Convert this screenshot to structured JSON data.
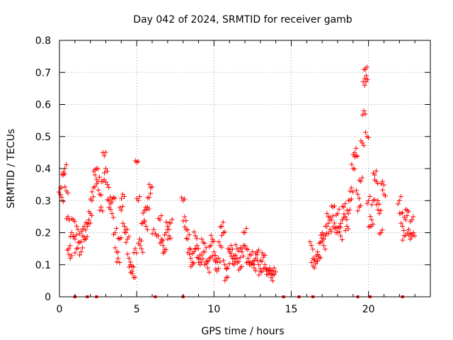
{
  "chart_data": {
    "type": "scatter",
    "title": "Day 042 of 2024, SRMTID for receiver gamb",
    "xlabel": "GPS time / hours",
    "ylabel": "SRMTID / TECUs",
    "xlim": [
      0,
      24
    ],
    "ylim": [
      0,
      0.8
    ],
    "x_ticks": [
      0,
      5,
      10,
      15,
      20
    ],
    "x_tick_labels": [
      "0",
      "5",
      "10",
      "15",
      "20"
    ],
    "y_ticks": [
      0,
      0.1,
      0.2,
      0.3,
      0.4,
      0.5,
      0.6,
      0.7,
      0.8
    ],
    "y_tick_labels": [
      "0",
      "0.1",
      "0.2",
      "0.3",
      "0.4",
      "0.5",
      "0.6",
      "0.7",
      "0.8"
    ],
    "grid": true,
    "marker": "plus",
    "color": "#ff0000",
    "gap_markers_x": [
      1.0,
      1.8,
      2.4,
      6.2,
      8.0,
      14.5,
      15.5,
      16.4,
      19.3,
      20.1,
      22.2
    ],
    "series": [
      {
        "name": "SRMTID",
        "points": [
          [
            0.05,
            0.34
          ],
          [
            0.15,
            0.31
          ],
          [
            0.25,
            0.38
          ],
          [
            0.35,
            0.4
          ],
          [
            0.45,
            0.33
          ],
          [
            0.55,
            0.25
          ],
          [
            0.6,
            0.15
          ],
          [
            0.7,
            0.12
          ],
          [
            0.8,
            0.2
          ],
          [
            0.9,
            0.24
          ],
          [
            1.0,
            0.18
          ],
          [
            1.1,
            0.15
          ],
          [
            1.2,
            0.21
          ],
          [
            1.3,
            0.17
          ],
          [
            1.4,
            0.14
          ],
          [
            1.5,
            0.19
          ],
          [
            1.6,
            0.22
          ],
          [
            1.7,
            0.18
          ],
          [
            1.8,
            0.22
          ],
          [
            1.9,
            0.24
          ],
          [
            2.0,
            0.26
          ],
          [
            2.1,
            0.3
          ],
          [
            2.2,
            0.34
          ],
          [
            2.3,
            0.38
          ],
          [
            2.4,
            0.4
          ],
          [
            2.5,
            0.36
          ],
          [
            2.6,
            0.32
          ],
          [
            2.7,
            0.28
          ],
          [
            2.8,
            0.36
          ],
          [
            2.9,
            0.44
          ],
          [
            3.0,
            0.4
          ],
          [
            3.1,
            0.35
          ],
          [
            3.2,
            0.3
          ],
          [
            3.3,
            0.29
          ],
          [
            3.4,
            0.26
          ],
          [
            3.5,
            0.31
          ],
          [
            3.6,
            0.2
          ],
          [
            3.7,
            0.14
          ],
          [
            3.8,
            0.12
          ],
          [
            3.9,
            0.18
          ],
          [
            4.0,
            0.27
          ],
          [
            4.1,
            0.32
          ],
          [
            4.2,
            0.22
          ],
          [
            4.3,
            0.2
          ],
          [
            4.4,
            0.18
          ],
          [
            4.5,
            0.12
          ],
          [
            4.6,
            0.1
          ],
          [
            4.7,
            0.08
          ],
          [
            4.8,
            0.06
          ],
          [
            4.9,
            0.15
          ],
          [
            5.0,
            0.42
          ],
          [
            5.1,
            0.3
          ],
          [
            5.2,
            0.18
          ],
          [
            5.3,
            0.15
          ],
          [
            5.4,
            0.23
          ],
          [
            5.5,
            0.27
          ],
          [
            5.6,
            0.22
          ],
          [
            5.7,
            0.28
          ],
          [
            5.8,
            0.31
          ],
          [
            5.9,
            0.34
          ],
          [
            6.1,
            0.21
          ],
          [
            6.3,
            0.19
          ],
          [
            6.5,
            0.24
          ],
          [
            6.6,
            0.18
          ],
          [
            6.7,
            0.16
          ],
          [
            6.8,
            0.14
          ],
          [
            6.9,
            0.2
          ],
          [
            7.0,
            0.22
          ],
          [
            7.1,
            0.19
          ],
          [
            7.2,
            0.23
          ],
          [
            8.0,
            0.3
          ],
          [
            8.1,
            0.25
          ],
          [
            8.2,
            0.21
          ],
          [
            8.3,
            0.18
          ],
          [
            8.4,
            0.15
          ],
          [
            8.5,
            0.12
          ],
          [
            8.6,
            0.1
          ],
          [
            8.7,
            0.14
          ],
          [
            8.8,
            0.19
          ],
          [
            8.9,
            0.16
          ],
          [
            9.0,
            0.12
          ],
          [
            9.1,
            0.1
          ],
          [
            9.2,
            0.13
          ],
          [
            9.3,
            0.17
          ],
          [
            9.4,
            0.14
          ],
          [
            9.5,
            0.11
          ],
          [
            9.6,
            0.09
          ],
          [
            9.7,
            0.12
          ],
          [
            9.8,
            0.16
          ],
          [
            9.9,
            0.18
          ],
          [
            10.0,
            0.14
          ],
          [
            10.1,
            0.11
          ],
          [
            10.2,
            0.08
          ],
          [
            10.3,
            0.12
          ],
          [
            10.4,
            0.16
          ],
          [
            10.5,
            0.22
          ],
          [
            10.6,
            0.2
          ],
          [
            10.7,
            0.1
          ],
          [
            10.8,
            0.06
          ],
          [
            10.9,
            0.09
          ],
          [
            11.0,
            0.14
          ],
          [
            11.1,
            0.16
          ],
          [
            11.2,
            0.12
          ],
          [
            11.3,
            0.1
          ],
          [
            11.4,
            0.13
          ],
          [
            11.5,
            0.15
          ],
          [
            11.6,
            0.11
          ],
          [
            11.7,
            0.09
          ],
          [
            11.8,
            0.14
          ],
          [
            11.9,
            0.16
          ],
          [
            12.0,
            0.2
          ],
          [
            12.1,
            0.15
          ],
          [
            12.2,
            0.12
          ],
          [
            12.3,
            0.1
          ],
          [
            12.4,
            0.13
          ],
          [
            12.5,
            0.11
          ],
          [
            12.6,
            0.09
          ],
          [
            12.7,
            0.12
          ],
          [
            12.8,
            0.14
          ],
          [
            12.9,
            0.1
          ],
          [
            13.0,
            0.08
          ],
          [
            13.1,
            0.11
          ],
          [
            13.2,
            0.13
          ],
          [
            13.3,
            0.1
          ],
          [
            13.4,
            0.08
          ],
          [
            13.5,
            0.07
          ],
          [
            13.6,
            0.09
          ],
          [
            13.7,
            0.06
          ],
          [
            13.8,
            0.08
          ],
          [
            13.9,
            0.07
          ],
          [
            16.3,
            0.16
          ],
          [
            16.4,
            0.12
          ],
          [
            16.5,
            0.09
          ],
          [
            16.6,
            0.11
          ],
          [
            16.7,
            0.14
          ],
          [
            16.8,
            0.12
          ],
          [
            16.9,
            0.17
          ],
          [
            17.0,
            0.2
          ],
          [
            17.1,
            0.16
          ],
          [
            17.2,
            0.19
          ],
          [
            17.3,
            0.22
          ],
          [
            17.4,
            0.25
          ],
          [
            17.5,
            0.21
          ],
          [
            17.6,
            0.24
          ],
          [
            17.7,
            0.28
          ],
          [
            17.8,
            0.23
          ],
          [
            17.9,
            0.2
          ],
          [
            18.0,
            0.26
          ],
          [
            18.1,
            0.22
          ],
          [
            18.2,
            0.19
          ],
          [
            18.3,
            0.24
          ],
          [
            18.4,
            0.28
          ],
          [
            18.5,
            0.25
          ],
          [
            18.6,
            0.22
          ],
          [
            18.7,
            0.26
          ],
          [
            18.8,
            0.3
          ],
          [
            18.9,
            0.34
          ],
          [
            19.0,
            0.4
          ],
          [
            19.1,
            0.45
          ],
          [
            19.2,
            0.44
          ],
          [
            19.3,
            0.32
          ],
          [
            19.4,
            0.28
          ],
          [
            19.5,
            0.36
          ],
          [
            19.6,
            0.48
          ],
          [
            19.7,
            0.58
          ],
          [
            19.75,
            0.66
          ],
          [
            19.8,
            0.71
          ],
          [
            19.85,
            0.69
          ],
          [
            19.9,
            0.5
          ],
          [
            20.0,
            0.3
          ],
          [
            20.1,
            0.22
          ],
          [
            20.2,
            0.24
          ],
          [
            20.3,
            0.3
          ],
          [
            20.4,
            0.38
          ],
          [
            20.5,
            0.36
          ],
          [
            20.6,
            0.3
          ],
          [
            20.7,
            0.26
          ],
          [
            20.8,
            0.2
          ],
          [
            20.9,
            0.36
          ],
          [
            21.0,
            0.32
          ],
          [
            22.0,
            0.3
          ],
          [
            22.1,
            0.26
          ],
          [
            22.2,
            0.22
          ],
          [
            22.3,
            0.19
          ],
          [
            22.4,
            0.24
          ],
          [
            22.5,
            0.27
          ],
          [
            22.6,
            0.21
          ],
          [
            22.7,
            0.18
          ],
          [
            22.8,
            0.24
          ],
          [
            22.9,
            0.2
          ]
        ]
      }
    ]
  }
}
